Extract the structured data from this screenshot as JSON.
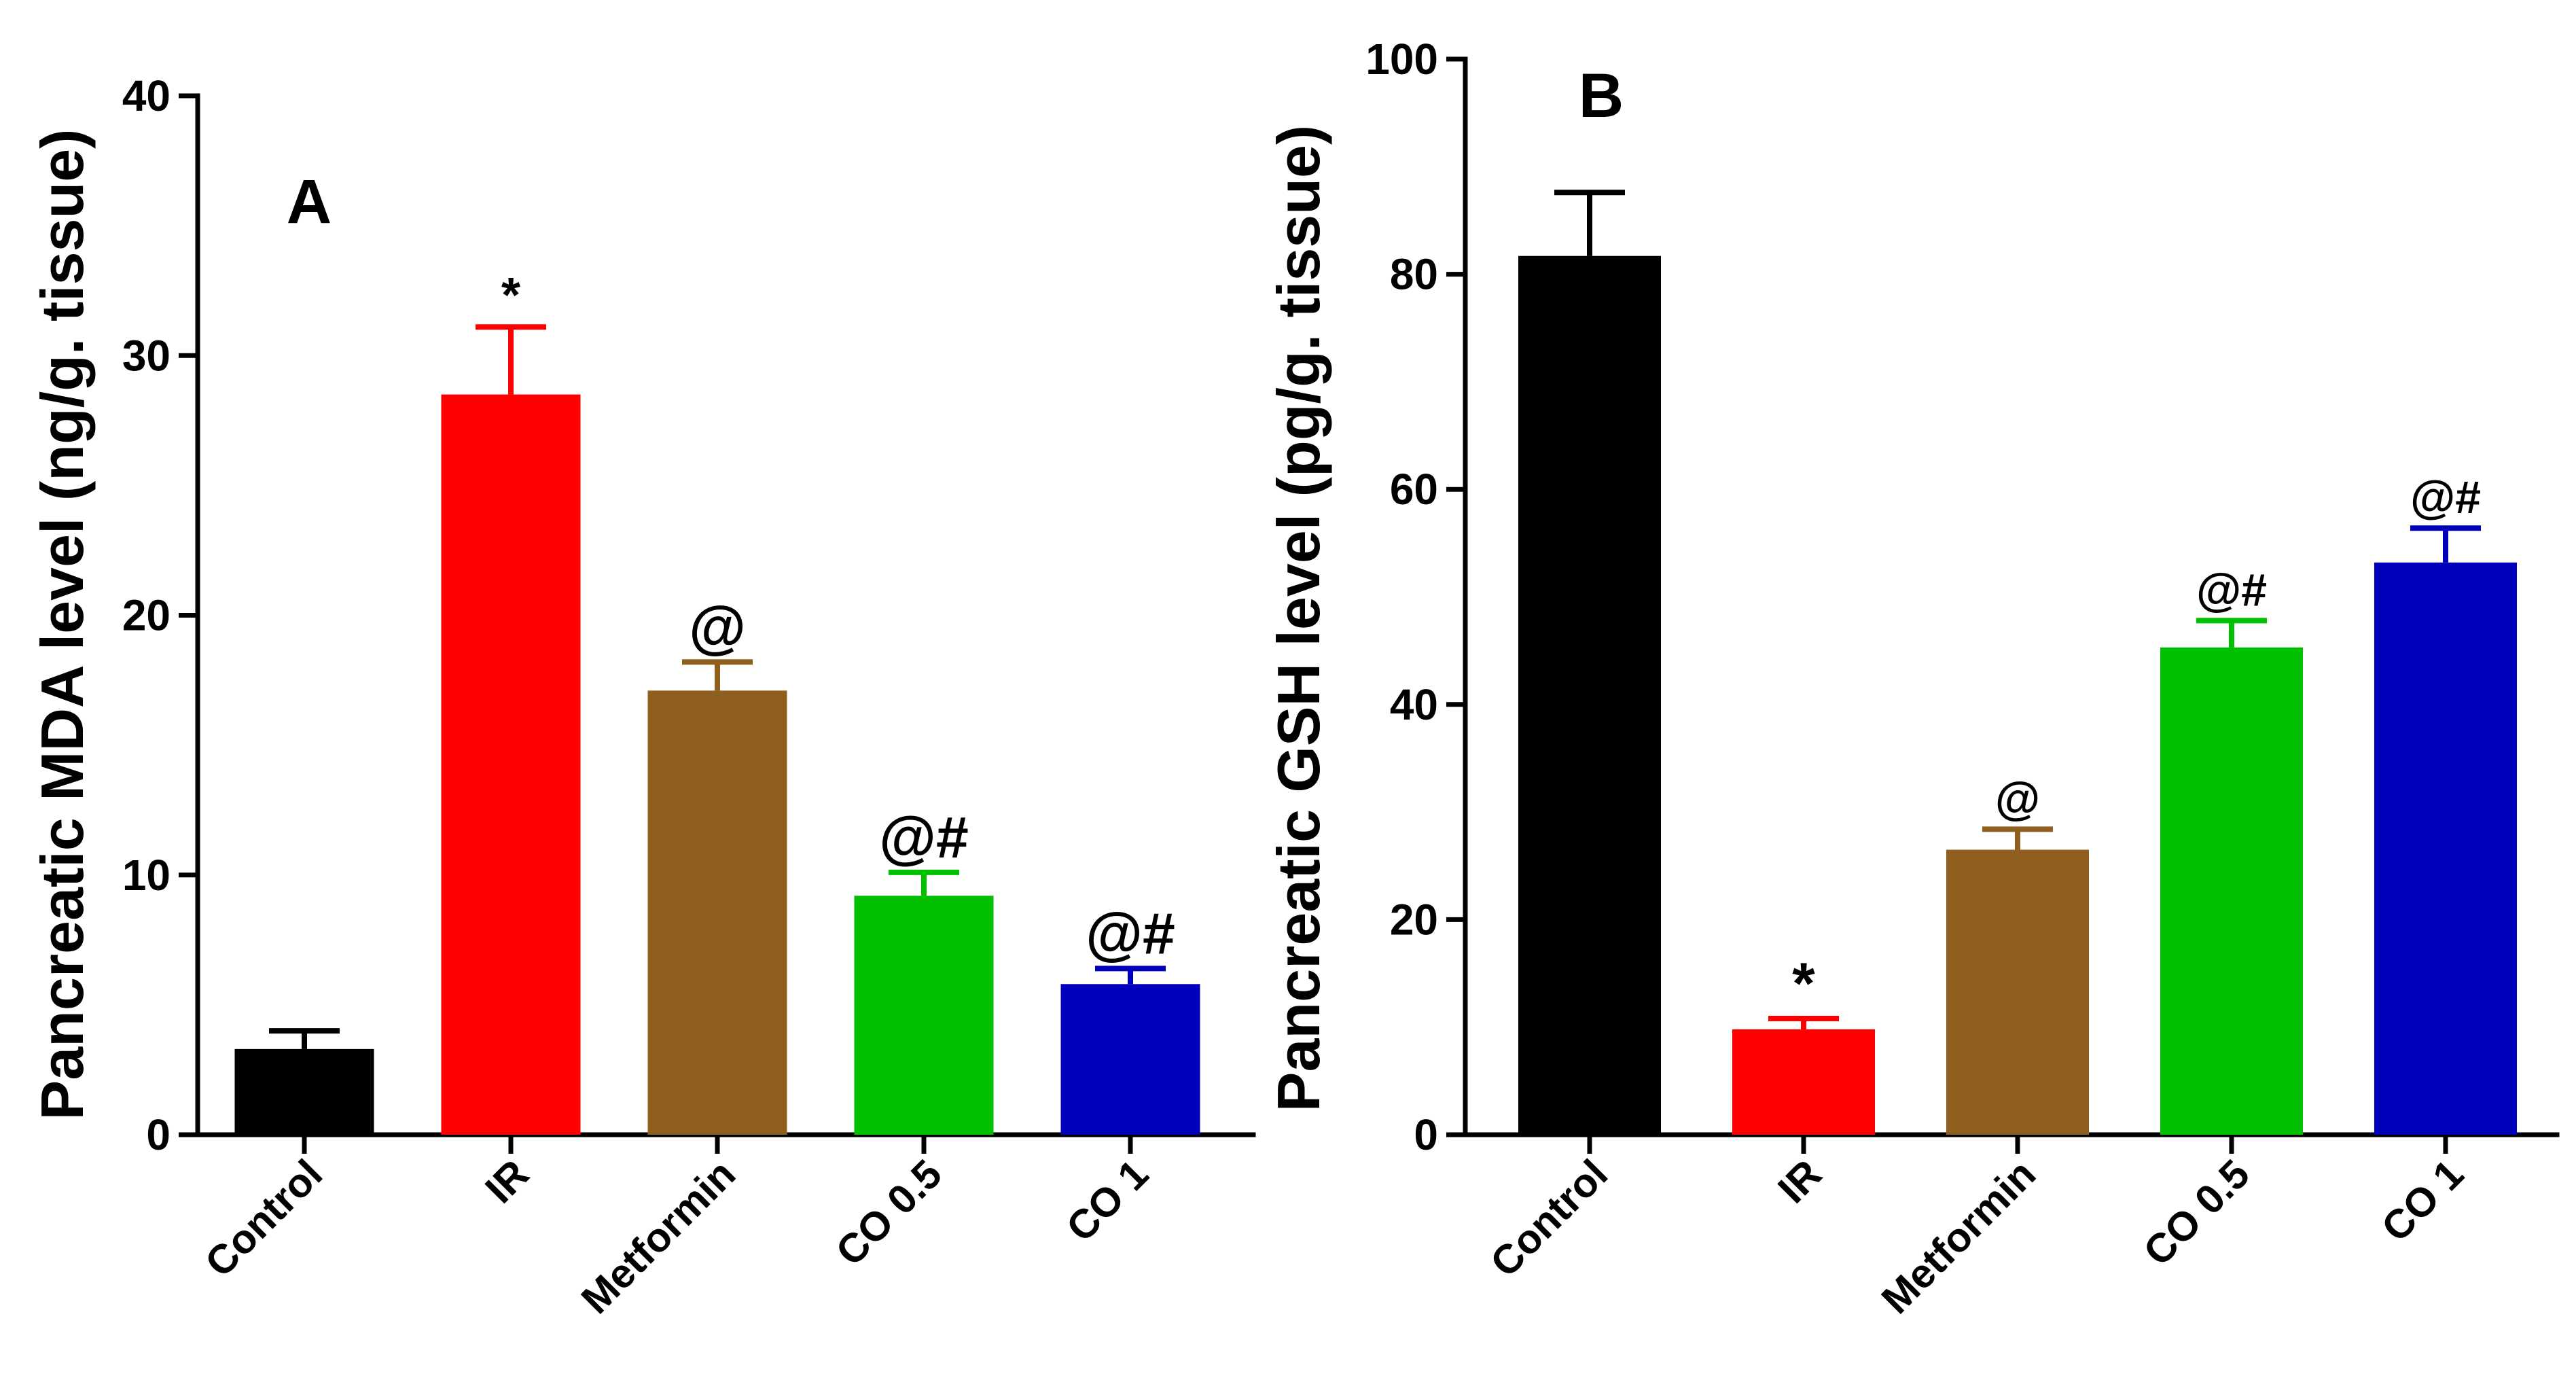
{
  "chart_data": [
    {
      "panel_label": "A",
      "type": "bar",
      "title": "",
      "xlabel": "",
      "ylabel": "Pancreatic MDA level (ng/g. tissue)",
      "ylim": [
        0,
        40
      ],
      "yticks": [
        0,
        10,
        20,
        30,
        40
      ],
      "categories": [
        "Control",
        "IR",
        "Metformin",
        "CO 0.5",
        "CO 1"
      ],
      "values": [
        3.3,
        28.5,
        17.1,
        9.2,
        5.8
      ],
      "errors": [
        0.7,
        2.6,
        1.1,
        0.9,
        0.6
      ],
      "colors": [
        "#000000",
        "#ff0000",
        "#8f5f1f",
        "#00c000",
        "#0000bb"
      ],
      "annotations": [
        "",
        "*",
        "@",
        "@#",
        "@#"
      ],
      "grid": false
    },
    {
      "panel_label": "B",
      "type": "bar",
      "title": "",
      "xlabel": "",
      "ylabel": "Pancreatic GSH level (pg/g. tissue)",
      "ylim": [
        0,
        100
      ],
      "yticks": [
        0,
        20,
        40,
        60,
        80,
        100
      ],
      "categories": [
        "Control",
        "IR",
        "Metformin",
        "CO 0.5",
        "CO 1"
      ],
      "values": [
        81.7,
        9.8,
        26.5,
        45.3,
        53.2
      ],
      "errors": [
        5.9,
        1.0,
        1.9,
        2.5,
        3.2
      ],
      "colors": [
        "#000000",
        "#ff0000",
        "#8f5f1f",
        "#00c000",
        "#0000bb"
      ],
      "annotations": [
        "",
        "*",
        "@",
        "@#",
        "@#"
      ],
      "grid": false
    }
  ]
}
